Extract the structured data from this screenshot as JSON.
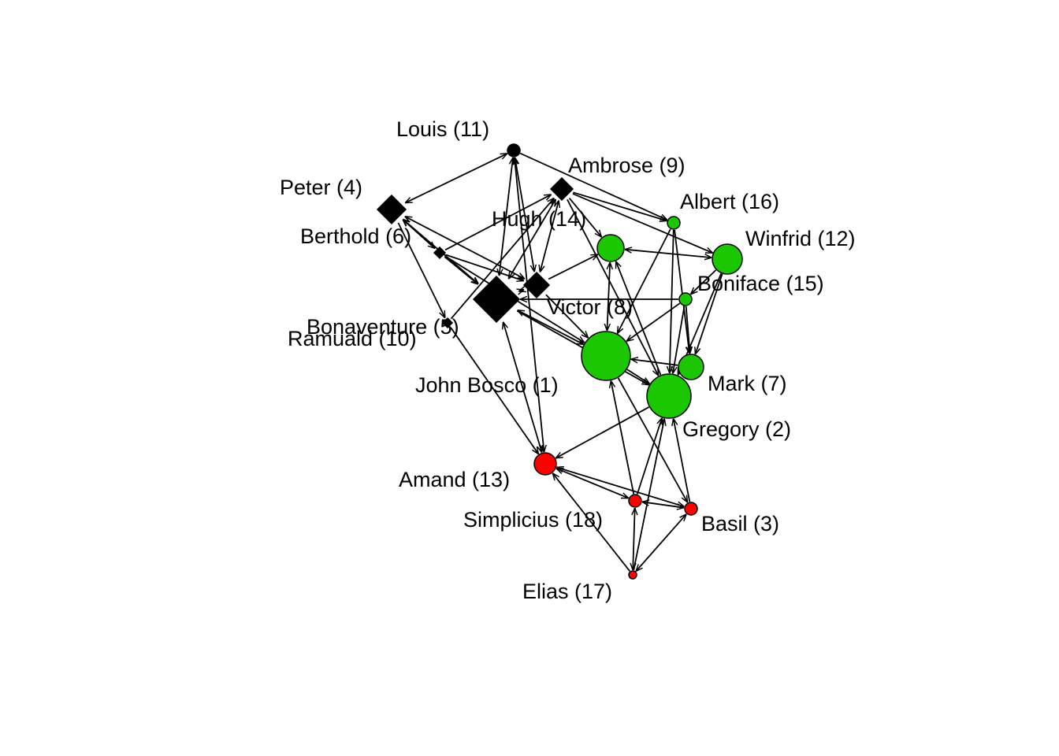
{
  "nodes": [
    {
      "id": 1,
      "label": "John Bosco (1)",
      "shape": "circle",
      "color": "#1AC700"
    },
    {
      "id": 2,
      "label": "Gregory (2)",
      "shape": "circle",
      "color": "#1AC700"
    },
    {
      "id": 3,
      "label": "Basil (3)",
      "shape": "circle",
      "color": "#FF0000"
    },
    {
      "id": 4,
      "label": "Peter (4)",
      "shape": "diamond",
      "color": "#000000"
    },
    {
      "id": 5,
      "label": "Bonaventure (5)",
      "shape": "diamond",
      "color": "#000000"
    },
    {
      "id": 6,
      "label": "Berthold (6)",
      "shape": "diamond",
      "color": "#000000"
    },
    {
      "id": 7,
      "label": "Mark (7)",
      "shape": "circle",
      "color": "#1AC700"
    },
    {
      "id": 8,
      "label": "Victor (8)",
      "shape": "diamond",
      "color": "#000000"
    },
    {
      "id": 9,
      "label": "Ambrose (9)",
      "shape": "diamond",
      "color": "#000000"
    },
    {
      "id": 10,
      "label": "Ramuald (10)",
      "shape": "diamond",
      "color": "#000000"
    },
    {
      "id": 11,
      "label": "Louis (11)",
      "shape": "circle",
      "color": "#000000"
    },
    {
      "id": 12,
      "label": "Winfrid (12)",
      "shape": "circle",
      "color": "#1AC700"
    },
    {
      "id": 13,
      "label": "Amand (13)",
      "shape": "circle",
      "color": "#FF0000"
    },
    {
      "id": 14,
      "label": "Hugh (14)",
      "shape": "circle",
      "color": "#1AC700"
    },
    {
      "id": 15,
      "label": "Boniface (15)",
      "shape": "circle",
      "color": "#1AC700"
    },
    {
      "id": 16,
      "label": "Albert (16)",
      "shape": "circle",
      "color": "#1AC700"
    },
    {
      "id": 17,
      "label": "Elias (17)",
      "shape": "circle",
      "color": "#FF0000"
    },
    {
      "id": 18,
      "label": "Simplicius (18)",
      "shape": "circle",
      "color": "#FF0000"
    }
  ],
  "edges": [
    [
      4,
      11,
      "both"
    ],
    [
      11,
      10,
      "both"
    ],
    [
      11,
      8,
      "both"
    ],
    [
      11,
      13,
      "both"
    ],
    [
      11,
      16,
      "end"
    ],
    [
      4,
      5,
      "end"
    ],
    [
      4,
      10,
      "both"
    ],
    [
      4,
      8,
      "both"
    ],
    [
      4,
      6,
      "both"
    ],
    [
      6,
      9,
      "end"
    ],
    [
      6,
      10,
      "end"
    ],
    [
      6,
      1,
      "end"
    ],
    [
      6,
      8,
      "end"
    ],
    [
      5,
      9,
      "end"
    ],
    [
      5,
      13,
      "end"
    ],
    [
      10,
      9,
      "both"
    ],
    [
      10,
      8,
      "both"
    ],
    [
      10,
      13,
      "both"
    ],
    [
      10,
      1,
      "both"
    ],
    [
      10,
      15,
      "start"
    ],
    [
      10,
      2,
      "end"
    ],
    [
      9,
      8,
      "both"
    ],
    [
      9,
      16,
      "end"
    ],
    [
      9,
      12,
      "end"
    ],
    [
      9,
      14,
      "end"
    ],
    [
      9,
      2,
      "end"
    ],
    [
      8,
      14,
      "end"
    ],
    [
      8,
      1,
      "end"
    ],
    [
      14,
      12,
      "both"
    ],
    [
      14,
      1,
      "both"
    ],
    [
      14,
      2,
      "start"
    ],
    [
      16,
      1,
      "end"
    ],
    [
      16,
      7,
      "end"
    ],
    [
      16,
      2,
      "end"
    ],
    [
      15,
      12,
      "start"
    ],
    [
      15,
      1,
      "end"
    ],
    [
      15,
      7,
      "end"
    ],
    [
      15,
      2,
      "end"
    ],
    [
      12,
      7,
      "end"
    ],
    [
      12,
      2,
      "end"
    ],
    [
      7,
      1,
      "end"
    ],
    [
      1,
      2,
      "end"
    ],
    [
      13,
      2,
      "start"
    ],
    [
      13,
      18,
      "both"
    ],
    [
      13,
      3,
      "both"
    ],
    [
      17,
      13,
      "end"
    ],
    [
      1,
      3,
      "end"
    ],
    [
      18,
      1,
      "end"
    ],
    [
      18,
      2,
      "end"
    ],
    [
      17,
      2,
      "end"
    ],
    [
      18,
      3,
      "both"
    ],
    [
      17,
      18,
      "both"
    ],
    [
      17,
      3,
      "both"
    ],
    [
      2,
      3,
      "start"
    ]
  ]
}
